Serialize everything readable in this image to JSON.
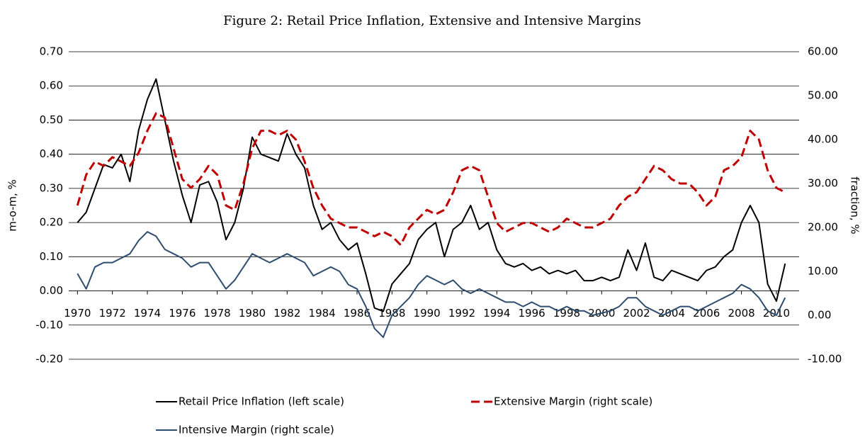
{
  "chart_data": {
    "type": "line",
    "title": "Figure 2: Retail Price Inflation, Extensive and Intensive Margins",
    "y_label": "m-o-m, %",
    "y2_label": "fraction, %",
    "x": [
      1970,
      1970.5,
      1971,
      1971.5,
      1972,
      1972.5,
      1973,
      1973.5,
      1974,
      1974.5,
      1975,
      1975.5,
      1976,
      1976.5,
      1977,
      1977.5,
      1978,
      1978.5,
      1979,
      1979.5,
      1980,
      1980.5,
      1981,
      1981.5,
      1982,
      1982.5,
      1983,
      1983.5,
      1984,
      1984.5,
      1985,
      1985.5,
      1986,
      1986.5,
      1987,
      1987.5,
      1988,
      1988.5,
      1989,
      1989.5,
      1990,
      1990.5,
      1991,
      1991.5,
      1992,
      1992.5,
      1993,
      1993.5,
      1994,
      1994.5,
      1995,
      1995.5,
      1996,
      1996.5,
      1997,
      1997.5,
      1998,
      1998.5,
      1999,
      1999.5,
      2000,
      2000.5,
      2001,
      2001.5,
      2002,
      2002.5,
      2003,
      2003.5,
      2004,
      2004.5,
      2005,
      2005.5,
      2006,
      2006.5,
      2007,
      2007.5,
      2008,
      2008.5,
      2009,
      2009.5,
      2010,
      2010.5
    ],
    "xlim": [
      1969.5,
      2011.3
    ],
    "xticks": [
      1970,
      1972,
      1974,
      1976,
      1978,
      1980,
      1982,
      1984,
      1986,
      1988,
      1990,
      1992,
      1994,
      1996,
      1998,
      2000,
      2002,
      2004,
      2006,
      2008,
      2010
    ],
    "ylim": [
      -0.2,
      0.7
    ],
    "yticks": [
      {
        "value": 0.7,
        "label": "0.70"
      },
      {
        "value": 0.6,
        "label": "0.60"
      },
      {
        "value": 0.5,
        "label": "0.50"
      },
      {
        "value": 0.4,
        "label": "0.40"
      },
      {
        "value": 0.3,
        "label": "0.30"
      },
      {
        "value": 0.2,
        "label": "0.20"
      },
      {
        "value": 0.1,
        "label": "0.10"
      },
      {
        "value": 0,
        "label": "0.00"
      },
      {
        "value": -0.1,
        "label": "-0.10"
      },
      {
        "value": -0.2,
        "label": "-0.20"
      }
    ],
    "y2lim": [
      -10,
      60
    ],
    "y2ticks": [
      {
        "value": 60,
        "label": "60.00"
      },
      {
        "value": 50,
        "label": "50.00"
      },
      {
        "value": 40,
        "label": "40.00"
      },
      {
        "value": 30,
        "label": "30.00"
      },
      {
        "value": 20,
        "label": "20.00"
      },
      {
        "value": 10,
        "label": "10.00"
      },
      {
        "value": 0,
        "label": "0.00"
      },
      {
        "value": -10,
        "label": "-10.00"
      }
    ],
    "grid": true,
    "series": [
      {
        "name": "Retail Price Inflation (left scale)",
        "color": "#000000",
        "dash": "solid",
        "values": [
          0.2,
          0.23,
          0.3,
          0.37,
          0.36,
          0.4,
          0.32,
          0.47,
          0.56,
          0.62,
          0.5,
          0.38,
          0.28,
          0.2,
          0.31,
          0.32,
          0.26,
          0.15,
          0.2,
          0.3,
          0.45,
          0.4,
          0.39,
          0.38,
          0.46,
          0.4,
          0.36,
          0.25,
          0.18,
          0.2,
          0.15,
          0.12,
          0.14,
          0.05,
          -0.05,
          -0.06,
          0.02,
          0.05,
          0.08,
          0.15,
          0.18,
          0.2,
          0.1,
          0.18,
          0.2,
          0.25,
          0.18,
          0.2,
          0.12,
          0.08,
          0.07,
          0.08,
          0.06,
          0.07,
          0.05,
          0.06,
          0.05,
          0.06,
          0.03,
          0.03,
          0.04,
          0.03,
          0.04,
          0.12,
          0.06,
          0.14,
          0.04,
          0.03,
          0.06,
          0.05,
          0.04,
          0.03,
          0.06,
          0.07,
          0.1,
          0.12,
          0.2,
          0.25,
          0.2,
          0.02,
          -0.03,
          0.08
        ]
      },
      {
        "name": "Extensive Margin (right scale)",
        "color": "#c00000",
        "dash": "dashed",
        "axis": "y2",
        "values": [
          25,
          32,
          35,
          34,
          36,
          35,
          34,
          37,
          42,
          46,
          45,
          38,
          31,
          29,
          31,
          34,
          32,
          25,
          24,
          30,
          38,
          42,
          42,
          41,
          42,
          40,
          35,
          29,
          25,
          22,
          21,
          20,
          20,
          19,
          18,
          19,
          18,
          16,
          20,
          22,
          24,
          23,
          24,
          28,
          33,
          34,
          33,
          27,
          21,
          19,
          20,
          21,
          21,
          20,
          19,
          20,
          22,
          21,
          20,
          20,
          21,
          22,
          25,
          27,
          28,
          31,
          34,
          33,
          31,
          30,
          30,
          28,
          25,
          27,
          33,
          34,
          36,
          42,
          40,
          33,
          29,
          28
        ]
      },
      {
        "name": "Intensive Margin (right scale)",
        "color": "#2e4d6e",
        "dash": "solid",
        "axis": "y2",
        "values": [
          9.5,
          6,
          11,
          12,
          12,
          13,
          14,
          17,
          19,
          18,
          15,
          14,
          13,
          11,
          12,
          12,
          9,
          6,
          8,
          11,
          14,
          13,
          12,
          13,
          14,
          13,
          12,
          9,
          10,
          11,
          10,
          7,
          6,
          2,
          -3,
          -5,
          0,
          2,
          4,
          7,
          9,
          8,
          7,
          8,
          6,
          5,
          6,
          5,
          4,
          3,
          3,
          2,
          3,
          2,
          2,
          1,
          2,
          1,
          1,
          0,
          0.5,
          1,
          2,
          4,
          4,
          2,
          1,
          0,
          1,
          2,
          2,
          1,
          2,
          3,
          4,
          5,
          7,
          6,
          4,
          1,
          0,
          4
        ]
      }
    ]
  }
}
